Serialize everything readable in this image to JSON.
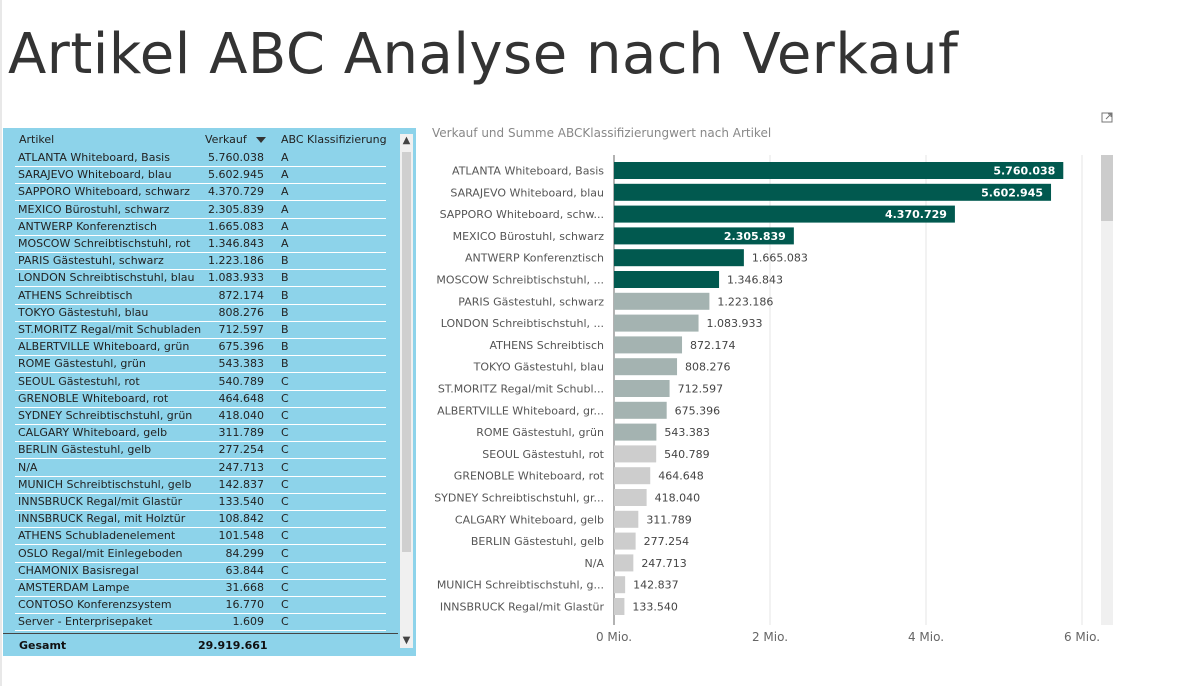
{
  "page": {
    "title": "Artikel ABC Analyse nach Verkauf"
  },
  "table": {
    "columns": {
      "artikel": "Artikel",
      "verkauf": "Verkauf",
      "abc": "ABC Klassifizierung"
    },
    "rows": [
      {
        "artikel": "ATLANTA Whiteboard, Basis",
        "verkauf": "5.760.038",
        "abc": "A"
      },
      {
        "artikel": "SARAJEVO Whiteboard, blau",
        "verkauf": "5.602.945",
        "abc": "A"
      },
      {
        "artikel": "SAPPORO Whiteboard, schwarz",
        "verkauf": "4.370.729",
        "abc": "A"
      },
      {
        "artikel": "MEXICO Bürostuhl, schwarz",
        "verkauf": "2.305.839",
        "abc": "A"
      },
      {
        "artikel": "ANTWERP Konferenztisch",
        "verkauf": "1.665.083",
        "abc": "A"
      },
      {
        "artikel": "MOSCOW Schreibtischstuhl, rot",
        "verkauf": "1.346.843",
        "abc": "A"
      },
      {
        "artikel": "PARIS Gästestuhl, schwarz",
        "verkauf": "1.223.186",
        "abc": "B"
      },
      {
        "artikel": "LONDON Schreibtischstuhl, blau",
        "verkauf": "1.083.933",
        "abc": "B"
      },
      {
        "artikel": "ATHENS Schreibtisch",
        "verkauf": "872.174",
        "abc": "B"
      },
      {
        "artikel": "TOKYO Gästestuhl, blau",
        "verkauf": "808.276",
        "abc": "B"
      },
      {
        "artikel": "ST.MORITZ Regal/mit Schubladen",
        "verkauf": "712.597",
        "abc": "B"
      },
      {
        "artikel": "ALBERTVILLE Whiteboard, grün",
        "verkauf": "675.396",
        "abc": "B"
      },
      {
        "artikel": "ROME Gästestuhl, grün",
        "verkauf": "543.383",
        "abc": "B"
      },
      {
        "artikel": "SEOUL Gästestuhl, rot",
        "verkauf": "540.789",
        "abc": "C"
      },
      {
        "artikel": "GRENOBLE Whiteboard, rot",
        "verkauf": "464.648",
        "abc": "C"
      },
      {
        "artikel": "SYDNEY Schreibtischstuhl, grün",
        "verkauf": "418.040",
        "abc": "C"
      },
      {
        "artikel": "CALGARY Whiteboard, gelb",
        "verkauf": "311.789",
        "abc": "C"
      },
      {
        "artikel": "BERLIN Gästestuhl, gelb",
        "verkauf": "277.254",
        "abc": "C"
      },
      {
        "artikel": "N/A",
        "verkauf": "247.713",
        "abc": "C"
      },
      {
        "artikel": "MUNICH Schreibtischstuhl, gelb",
        "verkauf": "142.837",
        "abc": "C"
      },
      {
        "artikel": "INNSBRUCK Regal/mit Glastür",
        "verkauf": "133.540",
        "abc": "C"
      },
      {
        "artikel": "INNSBRUCK Regal, mit Holztür",
        "verkauf": "108.842",
        "abc": "C"
      },
      {
        "artikel": "ATHENS Schubladenelement",
        "verkauf": "101.548",
        "abc": "C"
      },
      {
        "artikel": "OSLO Regal/mit Einlegeboden",
        "verkauf": "84.299",
        "abc": "C"
      },
      {
        "artikel": "CHAMONIX Basisregal",
        "verkauf": "63.844",
        "abc": "C"
      },
      {
        "artikel": "AMSTERDAM Lampe",
        "verkauf": "31.668",
        "abc": "C"
      },
      {
        "artikel": "CONTOSO Konferenzsystem",
        "verkauf": "16.770",
        "abc": "C"
      },
      {
        "artikel": "Server - Enterprisepaket",
        "verkauf": "1.609",
        "abc": "C"
      }
    ],
    "total": {
      "label": "Gesamt",
      "value": "29.919.661"
    }
  },
  "chart_data": {
    "type": "bar",
    "orientation": "horizontal",
    "title": "Verkauf und Summe ABCKlassifizierungwert nach Artikel",
    "xlabel": "",
    "ylabel": "",
    "xlim": [
      0,
      6000000
    ],
    "x_ticks": [
      0,
      2000000,
      4000000,
      6000000
    ],
    "x_tick_labels": [
      "0 Mio.",
      "2 Mio.",
      "4 Mio.",
      "6 Mio."
    ],
    "grid": true,
    "legend": "none",
    "colors": {
      "A": "#01594f",
      "B": "#a4b3b1",
      "C": "#cdcdcd"
    },
    "categories": [
      "ATLANTA Whiteboard, Basis",
      "SARAJEVO Whiteboard, blau",
      "SAPPORO Whiteboard, schw...",
      "MEXICO Bürostuhl, schwarz",
      "ANTWERP Konferenztisch",
      "MOSCOW Schreibtischstuhl, ...",
      "PARIS Gästestuhl, schwarz",
      "LONDON Schreibtischstuhl, ...",
      "ATHENS Schreibtisch",
      "TOKYO Gästestuhl, blau",
      "ST.MORITZ Regal/mit Schubl...",
      "ALBERTVILLE Whiteboard, gr...",
      "ROME Gästestuhl, grün",
      "SEOUL Gästestuhl, rot",
      "GRENOBLE Whiteboard, rot",
      "SYDNEY Schreibtischstuhl, gr...",
      "CALGARY Whiteboard, gelb",
      "BERLIN Gästestuhl, gelb",
      "N/A",
      "MUNICH Schreibtischstuhl, g...",
      "INNSBRUCK Regal/mit Glastür"
    ],
    "values": [
      5760038,
      5602945,
      4370729,
      2305839,
      1665083,
      1346843,
      1223186,
      1083933,
      872174,
      808276,
      712597,
      675396,
      543383,
      540789,
      464648,
      418040,
      311789,
      277254,
      247713,
      142837,
      133540
    ],
    "value_labels": [
      "5.760.038",
      "5.602.945",
      "4.370.729",
      "2.305.839",
      "1.665.083",
      "1.346.843",
      "1.223.186",
      "1.083.933",
      "872.174",
      "808.276",
      "712.597",
      "675.396",
      "543.383",
      "540.789",
      "464.648",
      "418.040",
      "311.789",
      "277.254",
      "247.713",
      "142.837",
      "133.540"
    ],
    "abc_class": [
      "A",
      "A",
      "A",
      "A",
      "A",
      "A",
      "B",
      "B",
      "B",
      "B",
      "B",
      "B",
      "B",
      "C",
      "C",
      "C",
      "C",
      "C",
      "C",
      "C",
      "C"
    ]
  }
}
